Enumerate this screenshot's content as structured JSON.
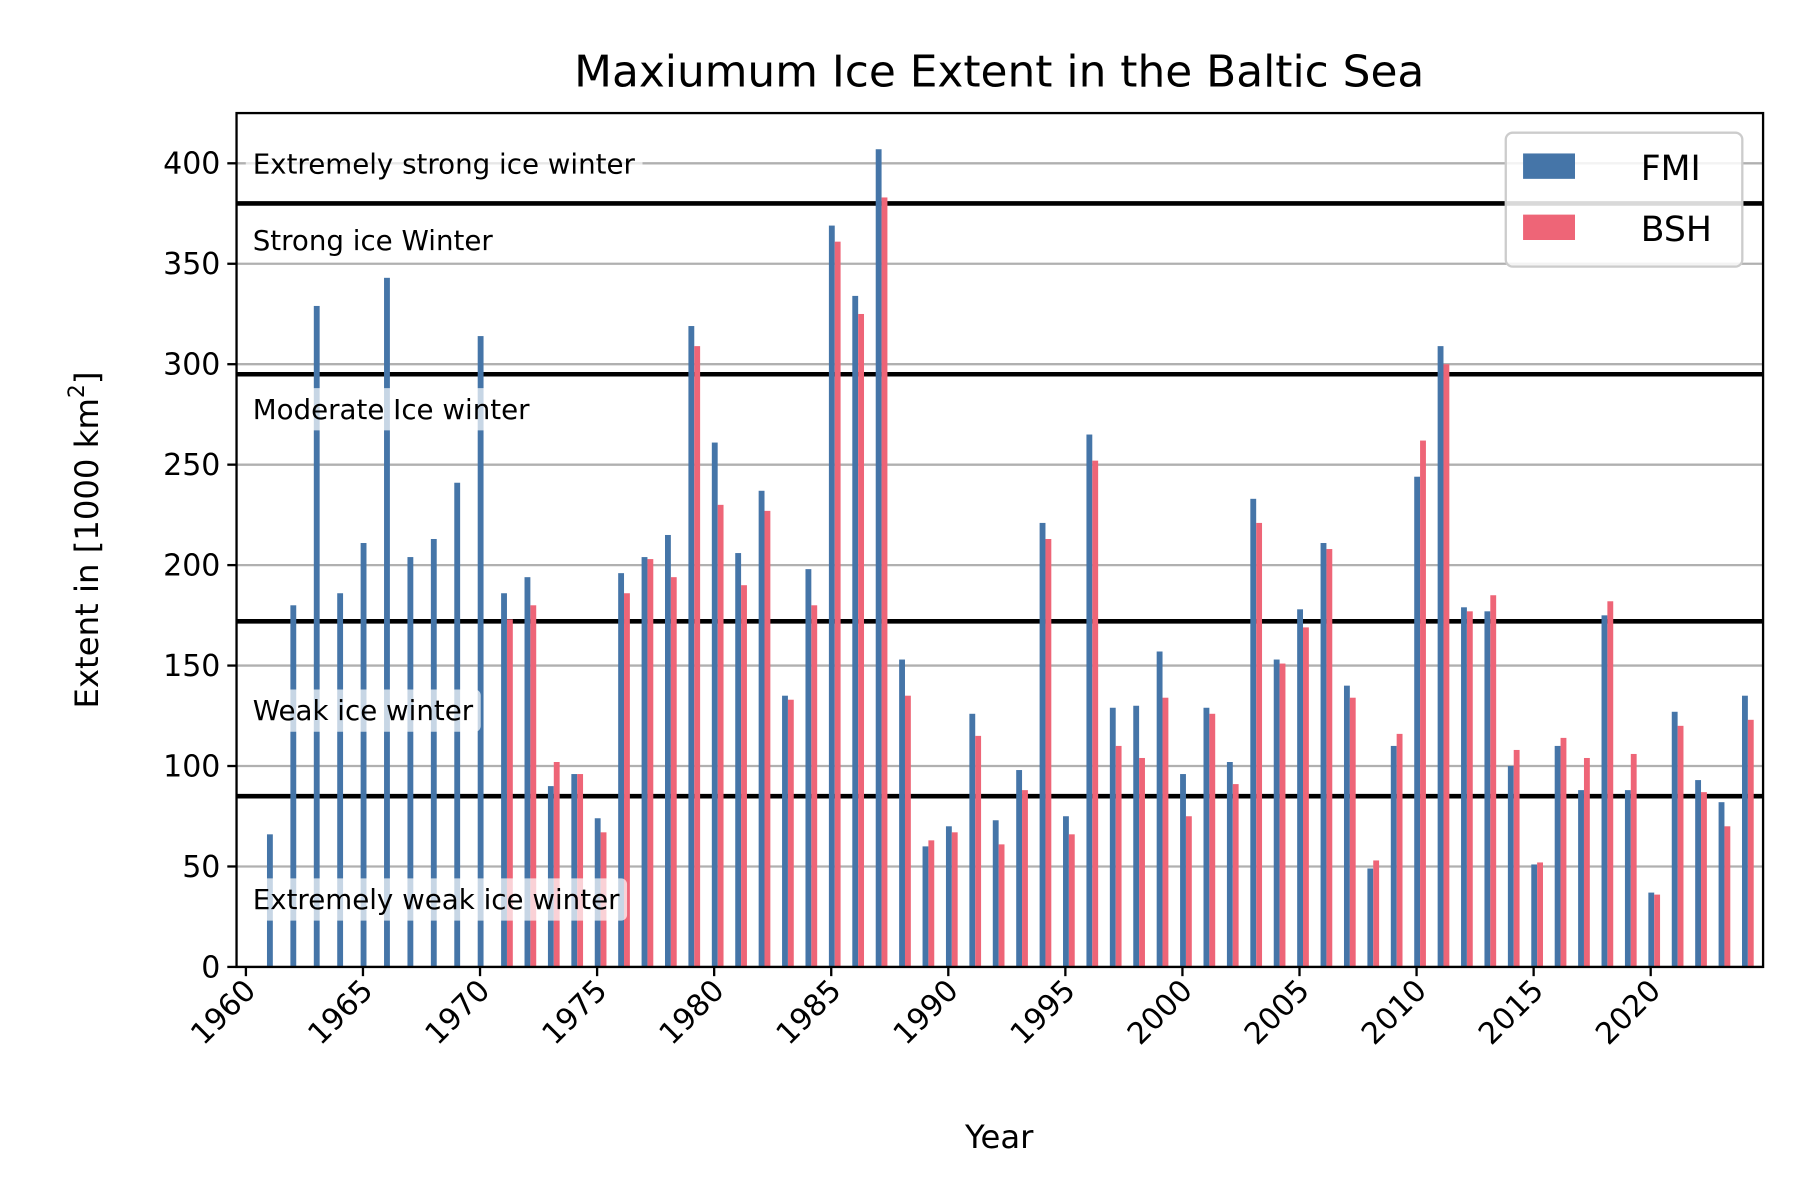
{
  "chart_data": {
    "type": "bar",
    "title": "Maxiumum Ice Extent in the Baltic Sea",
    "xlabel": "Year",
    "ylabel": "Extent in [1000 km²]",
    "xlim": [
      1959.6,
      2024.8
    ],
    "ylim": [
      0,
      425
    ],
    "xticks": [
      1960,
      1965,
      1970,
      1975,
      1980,
      1985,
      1990,
      1995,
      2000,
      2005,
      2010,
      2015,
      2020
    ],
    "yticks": [
      0,
      50,
      100,
      150,
      200,
      250,
      300,
      350,
      400
    ],
    "grid": "horizontal",
    "legend": "top-right",
    "colors": {
      "FMI": "#4575a8",
      "BSH": "#ee6577"
    },
    "thresholds": [
      380,
      295,
      172,
      85
    ],
    "regions": [
      {
        "label": "Extremely strong ice winter",
        "y": 400
      },
      {
        "label": "Strong ice Winter",
        "y": 362
      },
      {
        "label": "Moderate Ice winter",
        "y": 278
      },
      {
        "label": "Weak ice winter",
        "y": 128
      },
      {
        "label": "Extremely weak ice winter",
        "y": 34
      }
    ],
    "x": [
      1961,
      1962,
      1963,
      1964,
      1965,
      1966,
      1967,
      1968,
      1969,
      1970,
      1971,
      1972,
      1973,
      1974,
      1975,
      1976,
      1977,
      1978,
      1979,
      1980,
      1981,
      1982,
      1983,
      1984,
      1985,
      1986,
      1987,
      1988,
      1989,
      1990,
      1991,
      1992,
      1993,
      1994,
      1995,
      1996,
      1997,
      1998,
      1999,
      2000,
      2001,
      2002,
      2003,
      2004,
      2005,
      2006,
      2007,
      2008,
      2009,
      2010,
      2011,
      2012,
      2013,
      2014,
      2015,
      2016,
      2017,
      2018,
      2019,
      2020,
      2021,
      2022,
      2023,
      2024
    ],
    "series": [
      {
        "name": "FMI",
        "values": [
          66,
          180,
          329,
          186,
          211,
          343,
          204,
          213,
          241,
          314,
          186,
          194,
          90,
          96,
          74,
          196,
          204,
          215,
          319,
          261,
          206,
          237,
          135,
          198,
          369,
          334,
          407,
          153,
          60,
          70,
          126,
          73,
          98,
          221,
          75,
          265,
          129,
          130,
          157,
          96,
          129,
          102,
          233,
          153,
          178,
          211,
          140,
          49,
          110,
          244,
          309,
          179,
          177,
          100,
          51,
          110,
          88,
          175,
          88,
          37,
          127,
          93,
          82,
          135
        ]
      },
      {
        "name": "BSH",
        "values": [
          null,
          null,
          null,
          null,
          null,
          null,
          null,
          null,
          null,
          null,
          173,
          180,
          102,
          96,
          67,
          186,
          203,
          194,
          309,
          230,
          190,
          227,
          133,
          180,
          361,
          325,
          383,
          135,
          63,
          67,
          115,
          61,
          88,
          213,
          66,
          252,
          110,
          104,
          134,
          75,
          126,
          91,
          221,
          151,
          169,
          208,
          134,
          53,
          116,
          262,
          300,
          177,
          185,
          108,
          52,
          114,
          104,
          182,
          106,
          36,
          120,
          87,
          70,
          123
        ]
      }
    ]
  }
}
